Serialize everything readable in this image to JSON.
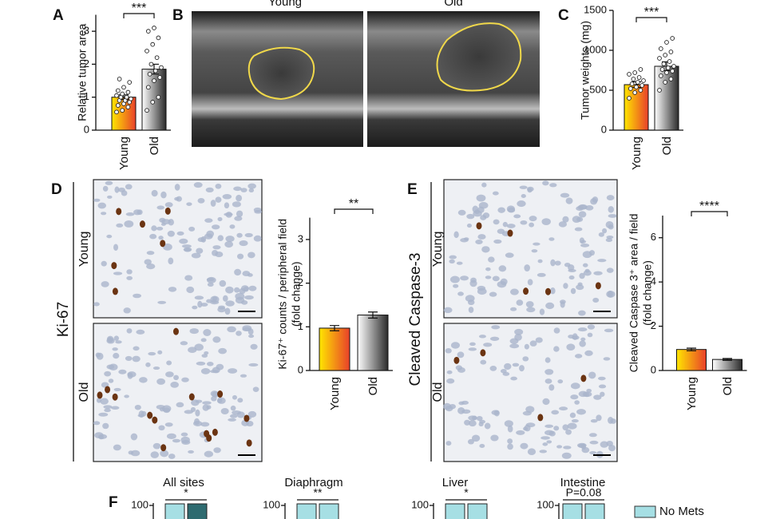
{
  "panels": [
    "A",
    "B",
    "C",
    "D",
    "E",
    "F"
  ],
  "images": {
    "b_titles": [
      "Young",
      "Old"
    ],
    "d_label": "Ki-67",
    "e_label": "Cleaved Caspase-3",
    "row_labels": [
      "Young",
      "Old"
    ]
  },
  "f_legend": {
    "name": "No Mets",
    "color": "#a6dfe4"
  },
  "chart_data": [
    {
      "type": "bar",
      "ylabel": [
        "Relative tumor area"
      ],
      "categories": [
        "Young",
        "Old"
      ],
      "values": [
        1.0,
        1.85
      ],
      "errors": [
        0.07,
        0.15
      ],
      "colors": [
        [
          "#ffe600",
          "#e8402a"
        ],
        [
          "#ffffff",
          "#2a2a2a"
        ]
      ],
      "significance": "***",
      "ylim": [
        0,
        3.5
      ],
      "yticks": [
        0,
        1,
        2,
        3
      ],
      "points": [
        [
          0.55,
          0.6,
          0.7,
          0.75,
          0.8,
          0.85,
          0.9,
          0.9,
          0.95,
          1.0,
          1.0,
          1.05,
          1.1,
          1.15,
          1.2,
          1.3,
          1.45,
          1.55
        ],
        [
          0.6,
          0.85,
          1.0,
          1.3,
          1.5,
          1.6,
          1.7,
          1.8,
          1.9,
          2.0,
          2.2,
          2.4,
          2.6,
          2.8,
          3.0,
          3.1
        ]
      ]
    },
    {
      "type": "bar",
      "ylabel": [
        "Tumor weights (mg)"
      ],
      "categories": [
        "Young",
        "Old"
      ],
      "values": [
        570,
        800
      ],
      "errors": [
        35,
        55
      ],
      "colors": [
        [
          "#ffe600",
          "#e8402a"
        ],
        [
          "#ffffff",
          "#2a2a2a"
        ]
      ],
      "significance": "***",
      "ylim": [
        0,
        1500
      ],
      "yticks": [
        0,
        500,
        1000,
        1500
      ],
      "points": [
        [
          400,
          470,
          500,
          520,
          540,
          560,
          580,
          600,
          620,
          640,
          660,
          700,
          720,
          760
        ],
        [
          500,
          600,
          640,
          680,
          720,
          740,
          760,
          780,
          800,
          830,
          860,
          900,
          940,
          980,
          1020,
          1100,
          1150
        ]
      ]
    },
    {
      "type": "bar",
      "ylabel": [
        "Ki-67⁺ counts / peripheral field",
        "(fold change)"
      ],
      "categories": [
        "Young",
        "Old"
      ],
      "values": [
        0.97,
        1.27
      ],
      "errors": [
        0.06,
        0.07
      ],
      "colors": [
        [
          "#ffe600",
          "#e8402a"
        ],
        [
          "#ffffff",
          "#2a2a2a"
        ]
      ],
      "significance": "**",
      "ylim": [
        0,
        3.5
      ],
      "yticks": [
        0,
        1,
        2,
        3
      ]
    },
    {
      "type": "bar",
      "ylabel": [
        "Cleaved Caspase 3⁺ area / field",
        "(fold change)"
      ],
      "categories": [
        "Young",
        "Old"
      ],
      "values": [
        0.95,
        0.5
      ],
      "errors": [
        0.06,
        0.04
      ],
      "colors": [
        [
          "#ffe600",
          "#e8402a"
        ],
        [
          "#ffffff",
          "#2a2a2a"
        ]
      ],
      "significance": "****",
      "ylim": [
        0,
        7
      ],
      "yticks": [
        0,
        2,
        4,
        6
      ]
    },
    {
      "type": "partial",
      "title": "All sites",
      "significance": "*",
      "yticks": [
        100
      ]
    },
    {
      "type": "partial",
      "title": "Diaphragm",
      "significance": "**",
      "yticks": [
        100
      ]
    },
    {
      "type": "partial",
      "title": "Liver",
      "significance": "*",
      "yticks": [
        100
      ]
    },
    {
      "type": "partial",
      "title": "Intestine",
      "significance": "P=0.08",
      "yticks": [
        100
      ]
    }
  ]
}
